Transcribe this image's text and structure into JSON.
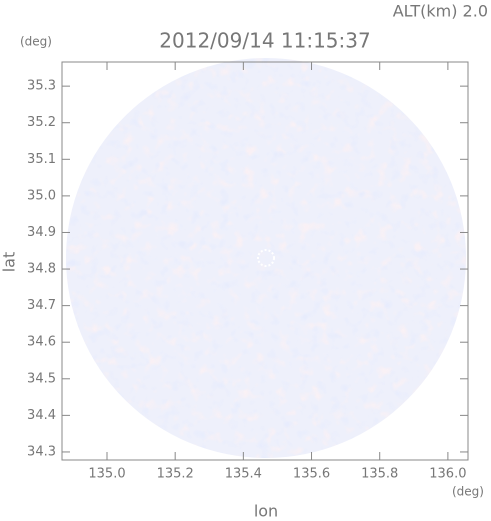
{
  "chart_data": {
    "type": "radar-map",
    "title": "2012/09/14 11:15:37",
    "subtitle": "ALT(km) 2.0",
    "x_label": "lon",
    "y_label": "lat",
    "x_unit": "(deg)",
    "y_unit": "(deg)",
    "xlim": [
      134.868,
      136.059
    ],
    "xticks": [
      {
        "value": 135,
        "label": "135.0"
      },
      135.2,
      135.4,
      135.6,
      135.8,
      {
        "value": 136,
        "label": "136.0"
      }
    ],
    "ylim": [
      34.278,
      35.366
    ],
    "yticks": [
      34.3,
      34.4,
      34.5,
      34.6,
      34.7,
      34.8,
      34.9,
      {
        "value": 35,
        "label": "35.0"
      },
      35.1,
      35.2,
      35.3
    ]
  }
}
